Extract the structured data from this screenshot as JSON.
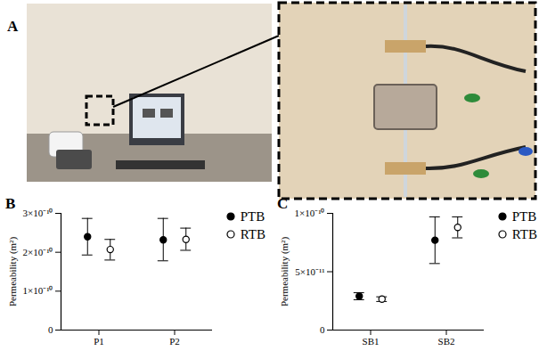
{
  "photo_panel": {
    "label": "A"
  },
  "chart_data": [
    {
      "type": "scatter",
      "title": "B",
      "categories": [
        "P1",
        "P2"
      ],
      "y_label": "Permeability (m²)",
      "ylim": [
        0,
        3e-10
      ],
      "yticks": [
        0,
        {
          "value": 1e-10,
          "label": "1×10⁻¹⁰"
        },
        {
          "value": 2e-10,
          "label": "2×10⁻¹⁰"
        },
        {
          "value": 3e-10,
          "label": "3×10⁻¹⁰"
        }
      ],
      "legend": "top-right",
      "grid": false,
      "series": [
        {
          "name": "PTB",
          "color": "#000000",
          "marker": "filled circle",
          "values": [
            2.4e-10,
            2.32e-10
          ],
          "lower": [
            1.93e-10,
            1.78e-10
          ],
          "upper": [
            2.87e-10,
            2.87e-10
          ]
        },
        {
          "name": "RTB",
          "color": "#000000",
          "marker": "open circle",
          "values": [
            2.07e-10,
            2.33e-10
          ],
          "lower": [
            1.8e-10,
            2.05e-10
          ],
          "upper": [
            2.33e-10,
            2.62e-10
          ]
        }
      ]
    },
    {
      "type": "scatter",
      "title": "C",
      "categories": [
        "SB1",
        "SB2"
      ],
      "y_label": "Permeability (m²)",
      "ylim": [
        0,
        1e-10
      ],
      "yticks": [
        0,
        {
          "value": 5e-11,
          "label": "5×10⁻¹¹"
        },
        {
          "value": 1e-10,
          "label": "1×10⁻¹⁰"
        }
      ],
      "legend": "top-right",
      "grid": false,
      "series": [
        {
          "name": "PTB",
          "color": "#000000",
          "marker": "filled circle",
          "values": [
            2.9e-11,
            7.7e-11
          ],
          "lower": [
            2.6e-11,
            5.7e-11
          ],
          "upper": [
            3.2e-11,
            9.7e-11
          ]
        },
        {
          "name": "RTB",
          "color": "#000000",
          "marker": "open circle",
          "values": [
            2.65e-11,
            8.8e-11
          ],
          "lower": [
            2.45e-11,
            7.9e-11
          ],
          "upper": [
            2.85e-11,
            9.7e-11
          ]
        }
      ]
    }
  ]
}
